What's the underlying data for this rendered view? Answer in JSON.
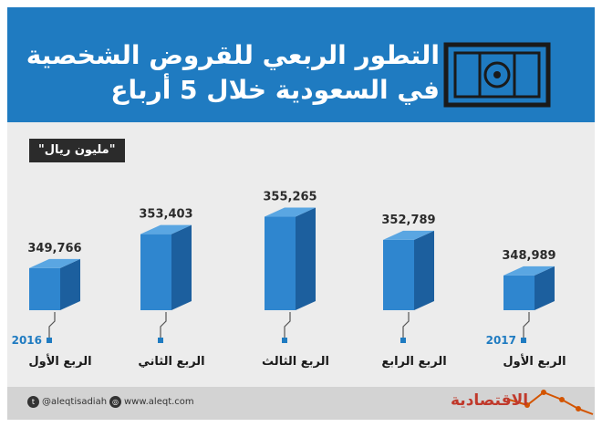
{
  "header": {
    "title_line1": "التطور الربعي للقروض الشخصية",
    "title_line2": "في السعودية خلال 5 أرباع"
  },
  "unit_label": "\"مليون ريال\"",
  "chart_data": {
    "type": "bar",
    "title": "التطور الربعي للقروض الشخصية في السعودية خلال 5 أرباع",
    "ylabel": "مليون ريال",
    "categories": [
      "الربع الأول 2017",
      "الربع الرابع",
      "الربع الثالث",
      "الربع الثاني",
      "الربع الأول 2016"
    ],
    "bars": [
      {
        "quarter": "الربع الأول",
        "year": "2017",
        "value": 348989,
        "value_label": "348,989"
      },
      {
        "quarter": "الربع الرابع",
        "year": "",
        "value": 352789,
        "value_label": "352,789"
      },
      {
        "quarter": "الربع الثالث",
        "year": "",
        "value": 355265,
        "value_label": "355,265"
      },
      {
        "quarter": "الربع الثاني",
        "year": "",
        "value": 353403,
        "value_label": "353,403"
      },
      {
        "quarter": "الربع الأول",
        "year": "2016",
        "value": 349766,
        "value_label": "349,766"
      }
    ],
    "ylim": [
      348000,
      356000
    ],
    "grid": false,
    "legend": "none",
    "colors": {
      "bar_front": "#2f86cf",
      "bar_side": "#1c5f9e",
      "bar_top": "#5aa6e2",
      "year": "#1f7bc1"
    }
  },
  "footer": {
    "twitter": "@aleqtisadiah",
    "website": "www.aleqt.com",
    "brand": "الاقتصادية"
  },
  "icons": {
    "header": "money-bill-icon",
    "twitter": "twitter-icon",
    "website": "globe-icon"
  }
}
